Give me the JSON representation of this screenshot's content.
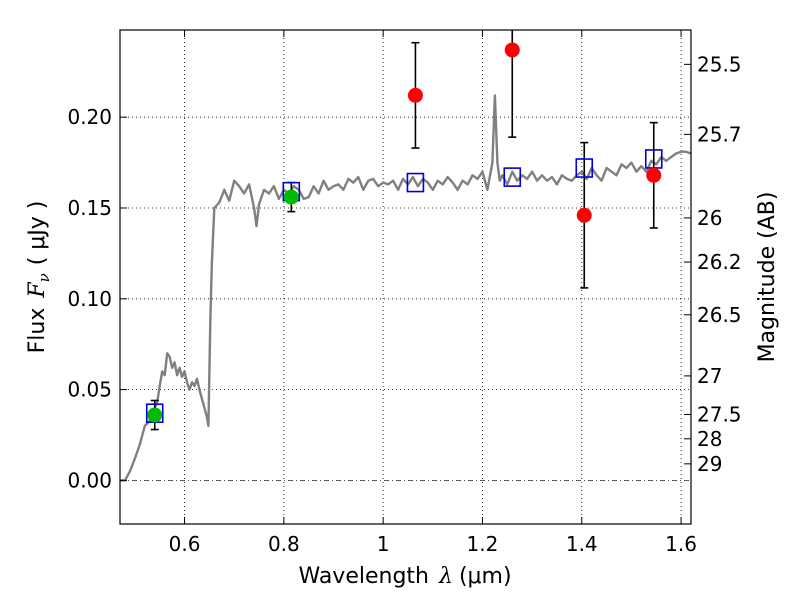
{
  "chart_data": {
    "type": "scatter",
    "title": "",
    "xlabel": {
      "prefix": "Wavelength",
      "symbol": "λ",
      "unit": "(μm)"
    },
    "ylabel": {
      "prefix": "Flux",
      "symbol": "F",
      "subscript": "ν",
      "unit": "( μJy )"
    },
    "y2label": "Magnitude (AB)",
    "xlim": [
      0.47,
      1.62
    ],
    "ylim": [
      -0.024,
      0.248
    ],
    "grid": true,
    "x_ticks": [
      0.6,
      0.8,
      1.0,
      1.2,
      1.4,
      1.6
    ],
    "x_tick_labels": [
      "0.6",
      "0.8",
      "1",
      "1.2",
      "1.4",
      "1.6"
    ],
    "y_ticks": [
      0.0,
      0.05,
      0.1,
      0.15,
      0.2
    ],
    "y_tick_labels": [
      "0.00",
      "0.05",
      "0.10",
      "0.15",
      "0.20"
    ],
    "mag_ticks": [
      25.5,
      25.7,
      26,
      26.2,
      26.5,
      27,
      27.5,
      28,
      29
    ],
    "mag_tick_labels": [
      "25.5",
      "25.7",
      "26",
      "26.2",
      "26.5",
      "27",
      "27.5",
      "28",
      "29"
    ],
    "zero_line": 0.0,
    "colors": {
      "model": "#808080",
      "detection": "#ff0000",
      "green": "#00bb00",
      "model_box": "#0000dd",
      "errorbar": "#000000"
    },
    "series": [
      {
        "name": "model_spectrum",
        "kind": "line",
        "x": [
          0.47,
          0.48,
          0.49,
          0.5,
          0.51,
          0.52,
          0.53,
          0.535,
          0.54,
          0.545,
          0.55,
          0.555,
          0.56,
          0.565,
          0.57,
          0.575,
          0.58,
          0.585,
          0.59,
          0.595,
          0.6,
          0.605,
          0.61,
          0.615,
          0.62,
          0.625,
          0.63,
          0.635,
          0.64,
          0.645,
          0.648,
          0.652,
          0.655,
          0.66,
          0.67,
          0.68,
          0.69,
          0.7,
          0.71,
          0.72,
          0.73,
          0.74,
          0.745,
          0.75,
          0.76,
          0.77,
          0.78,
          0.79,
          0.8,
          0.81,
          0.82,
          0.83,
          0.84,
          0.85,
          0.86,
          0.87,
          0.88,
          0.89,
          0.9,
          0.91,
          0.92,
          0.93,
          0.94,
          0.95,
          0.96,
          0.97,
          0.98,
          0.99,
          1.0,
          1.01,
          1.02,
          1.03,
          1.04,
          1.05,
          1.06,
          1.07,
          1.08,
          1.09,
          1.1,
          1.11,
          1.12,
          1.13,
          1.14,
          1.15,
          1.16,
          1.17,
          1.18,
          1.19,
          1.2,
          1.21,
          1.22,
          1.225,
          1.23,
          1.235,
          1.24,
          1.25,
          1.26,
          1.27,
          1.28,
          1.29,
          1.3,
          1.31,
          1.32,
          1.33,
          1.34,
          1.35,
          1.36,
          1.37,
          1.38,
          1.39,
          1.4,
          1.41,
          1.42,
          1.43,
          1.44,
          1.45,
          1.46,
          1.47,
          1.48,
          1.49,
          1.5,
          1.51,
          1.52,
          1.53,
          1.54,
          1.55,
          1.56,
          1.57,
          1.58,
          1.59,
          1.6,
          1.61,
          1.62
        ],
        "y": [
          0.0,
          0.0,
          0.005,
          0.012,
          0.02,
          0.03,
          0.033,
          0.038,
          0.04,
          0.043,
          0.052,
          0.06,
          0.058,
          0.07,
          0.068,
          0.062,
          0.065,
          0.058,
          0.062,
          0.057,
          0.06,
          0.054,
          0.05,
          0.054,
          0.052,
          0.056,
          0.05,
          0.045,
          0.04,
          0.035,
          0.03,
          0.09,
          0.12,
          0.15,
          0.153,
          0.16,
          0.154,
          0.165,
          0.162,
          0.158,
          0.163,
          0.15,
          0.14,
          0.152,
          0.16,
          0.158,
          0.162,
          0.155,
          0.16,
          0.158,
          0.162,
          0.16,
          0.155,
          0.156,
          0.162,
          0.158,
          0.165,
          0.16,
          0.162,
          0.163,
          0.16,
          0.166,
          0.164,
          0.167,
          0.16,
          0.165,
          0.166,
          0.162,
          0.164,
          0.163,
          0.165,
          0.16,
          0.166,
          0.163,
          0.167,
          0.162,
          0.166,
          0.164,
          0.16,
          0.165,
          0.163,
          0.167,
          0.164,
          0.16,
          0.165,
          0.163,
          0.168,
          0.166,
          0.17,
          0.16,
          0.175,
          0.212,
          0.175,
          0.165,
          0.168,
          0.163,
          0.17,
          0.165,
          0.168,
          0.166,
          0.17,
          0.165,
          0.168,
          0.165,
          0.167,
          0.163,
          0.168,
          0.166,
          0.165,
          0.168,
          0.17,
          0.166,
          0.172,
          0.168,
          0.165,
          0.172,
          0.17,
          0.168,
          0.174,
          0.172,
          0.175,
          0.17,
          0.173,
          0.17,
          0.176,
          0.174,
          0.178,
          0.176,
          0.178,
          0.18,
          0.181,
          0.181,
          0.18
        ]
      },
      {
        "name": "model_photometry",
        "kind": "open_square",
        "x": [
          0.54,
          0.815,
          1.065,
          1.26,
          1.405,
          1.545
        ],
        "y": [
          0.037,
          0.159,
          0.164,
          0.167,
          0.172,
          0.177
        ]
      },
      {
        "name": "observed_green",
        "kind": "filled_circle",
        "x": [
          0.54,
          0.815
        ],
        "y": [
          0.036,
          0.156
        ],
        "err": [
          0.008,
          0.008
        ]
      },
      {
        "name": "observed_red",
        "kind": "filled_circle",
        "x": [
          1.065,
          1.26,
          1.405,
          1.545
        ],
        "y": [
          0.212,
          0.237,
          0.146,
          0.168
        ],
        "err": [
          0.029,
          0.048,
          0.04,
          0.029
        ]
      }
    ]
  }
}
